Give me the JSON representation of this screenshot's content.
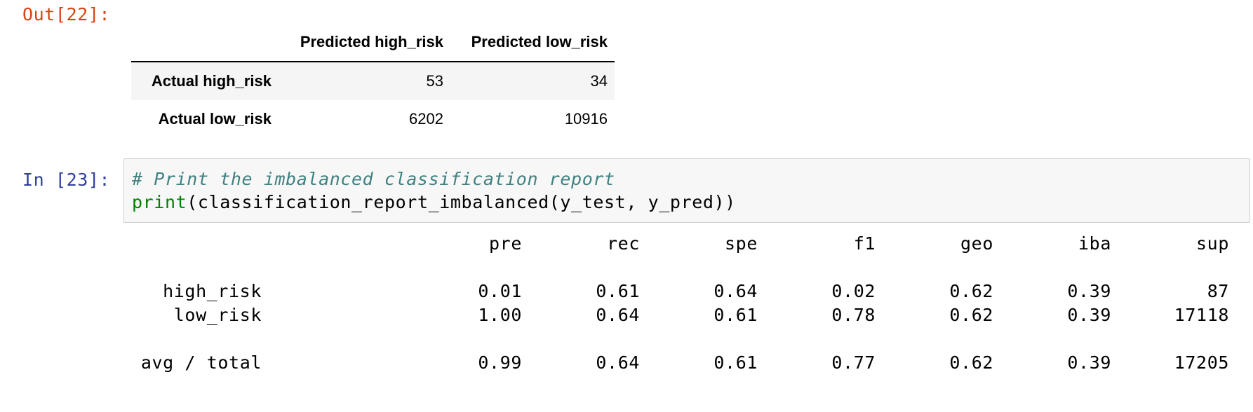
{
  "out_prompt": "Out[22]:",
  "in_prompt": "In [23]:",
  "confusion_matrix": {
    "columns": [
      "Predicted high_risk",
      "Predicted low_risk"
    ],
    "rows": [
      {
        "label": "Actual high_risk",
        "values": [
          "53",
          "34"
        ]
      },
      {
        "label": "Actual low_risk",
        "values": [
          "6202",
          "10916"
        ]
      }
    ]
  },
  "code": {
    "comment": "# Print the imbalanced classification report",
    "builtin": "print",
    "rest": "(classification_report_imbalanced(y_test, y_pred))"
  },
  "report": {
    "headers": [
      "pre",
      "rec",
      "spe",
      "f1",
      "geo",
      "iba",
      "sup"
    ],
    "rows": [
      {
        "label": "high_risk",
        "values": [
          "0.01",
          "0.61",
          "0.64",
          "0.02",
          "0.62",
          "0.39",
          "87"
        ]
      },
      {
        "label": "low_risk",
        "values": [
          "1.00",
          "0.64",
          "0.61",
          "0.78",
          "0.62",
          "0.39",
          "17118"
        ]
      }
    ],
    "total": {
      "label": "avg / total",
      "values": [
        "0.99",
        "0.64",
        "0.61",
        "0.77",
        "0.62",
        "0.39",
        "17205"
      ]
    }
  }
}
